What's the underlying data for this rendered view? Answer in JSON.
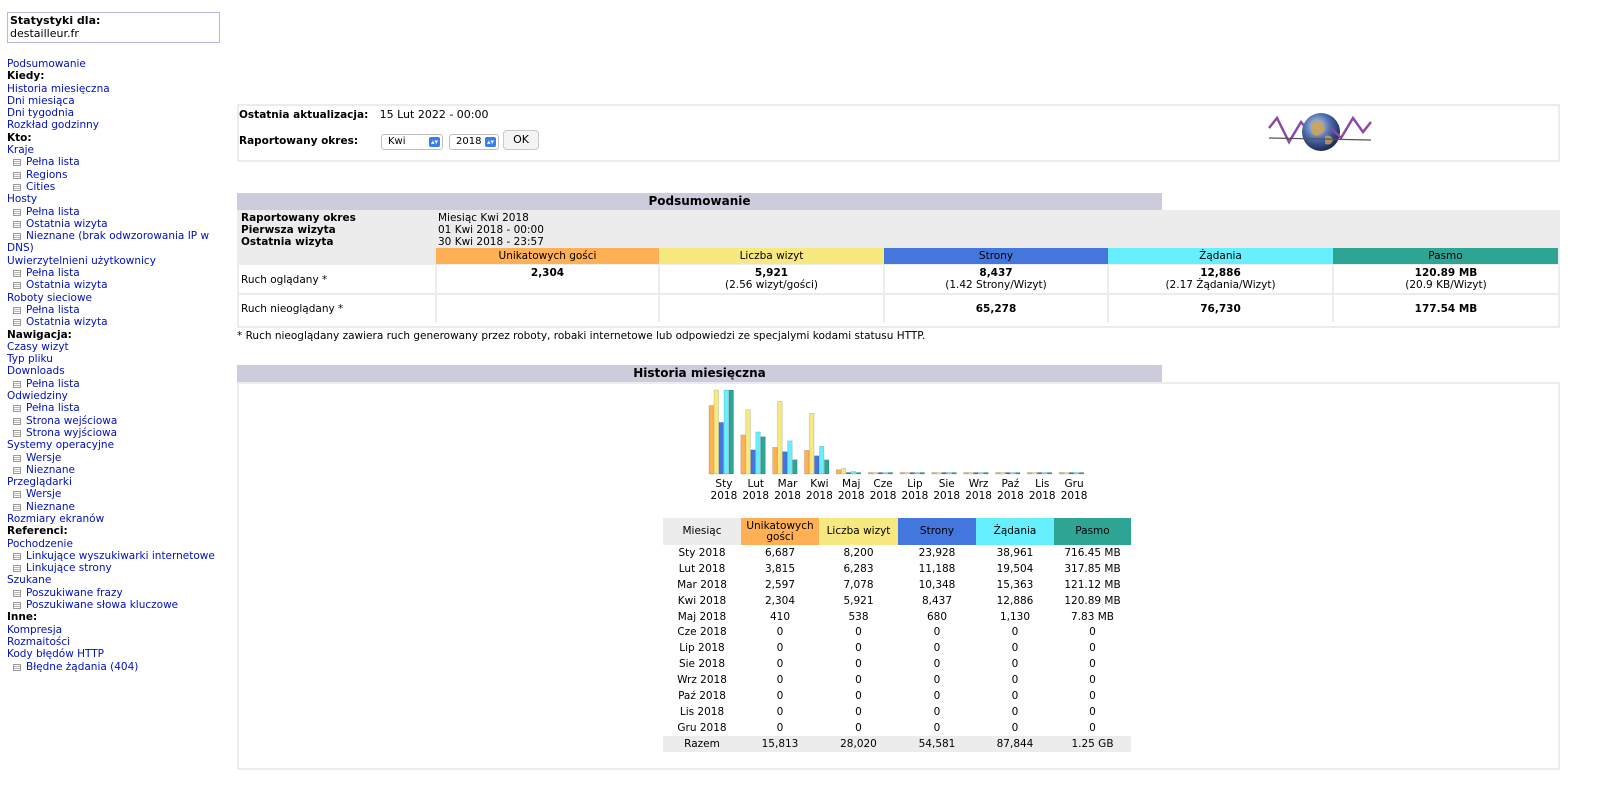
{
  "colors": {
    "unique": "#FFB055",
    "visits": "#F8E880",
    "pages": "#4477DD",
    "hits": "#66F0FF",
    "bandwidth": "#2EA495",
    "link": "#0011BB",
    "header_gray": "#CCCCDD",
    "border": "#ECECEC"
  },
  "menu": {
    "stats_label": "Statystyki dla:",
    "site": "destailleur.fr",
    "items": [
      {
        "type": "link",
        "label": "Podsumowanie"
      },
      {
        "type": "section",
        "label": "Kiedy:"
      },
      {
        "type": "link",
        "label": "Historia miesięczna"
      },
      {
        "type": "link",
        "label": "Dni miesiąca"
      },
      {
        "type": "link",
        "label": "Dni tygodnia"
      },
      {
        "type": "link",
        "label": "Rozkład godzinny"
      },
      {
        "type": "section",
        "label": "Kto:"
      },
      {
        "type": "link",
        "label": "Kraje"
      },
      {
        "type": "sub",
        "label": "Pełna lista"
      },
      {
        "type": "sub",
        "label": "Regions"
      },
      {
        "type": "sub",
        "label": "Cities"
      },
      {
        "type": "link",
        "label": "Hosty"
      },
      {
        "type": "sub",
        "label": "Pełna lista"
      },
      {
        "type": "sub",
        "label": "Ostatnia wizyta"
      },
      {
        "type": "subwrap",
        "label": "Nieznane (brak odwzorowania IP w DNS)"
      },
      {
        "type": "link",
        "label": "Uwierzytelnieni użytkownicy"
      },
      {
        "type": "sub",
        "label": "Pełna lista"
      },
      {
        "type": "sub",
        "label": "Ostatnia wizyta"
      },
      {
        "type": "link",
        "label": "Roboty sieciowe"
      },
      {
        "type": "sub",
        "label": "Pełna lista"
      },
      {
        "type": "sub",
        "label": "Ostatnia wizyta"
      },
      {
        "type": "section",
        "label": "Nawigacja:"
      },
      {
        "type": "link",
        "label": "Czasy wizyt"
      },
      {
        "type": "link",
        "label": "Typ pliku"
      },
      {
        "type": "link",
        "label": "Downloads"
      },
      {
        "type": "sub",
        "label": "Pełna lista"
      },
      {
        "type": "link",
        "label": "Odwiedziny"
      },
      {
        "type": "sub",
        "label": "Pełna lista"
      },
      {
        "type": "sub",
        "label": "Strona wejściowa"
      },
      {
        "type": "sub",
        "label": "Strona wyjściowa"
      },
      {
        "type": "link",
        "label": "Systemy operacyjne"
      },
      {
        "type": "sub",
        "label": "Wersje"
      },
      {
        "type": "sub",
        "label": "Nieznane"
      },
      {
        "type": "link",
        "label": "Przeglądarki"
      },
      {
        "type": "sub",
        "label": "Wersje"
      },
      {
        "type": "sub",
        "label": "Nieznane"
      },
      {
        "type": "link",
        "label": "Rozmiary ekranów"
      },
      {
        "type": "section",
        "label": "Referenci:"
      },
      {
        "type": "link",
        "label": "Pochodzenie"
      },
      {
        "type": "sub",
        "label": "Linkujące wyszukiwarki internetowe"
      },
      {
        "type": "sub",
        "label": "Linkujące strony"
      },
      {
        "type": "link",
        "label": "Szukane"
      },
      {
        "type": "sub",
        "label": "Poszukiwane frazy"
      },
      {
        "type": "sub",
        "label": "Poszukiwane słowa kluczowe"
      },
      {
        "type": "section",
        "label": "Inne:"
      },
      {
        "type": "link",
        "label": "Kompresja"
      },
      {
        "type": "link",
        "label": "Rozmaitości"
      },
      {
        "type": "link",
        "label": "Kody błędów HTTP"
      },
      {
        "type": "sub",
        "label": "Błędne żądania (404)"
      }
    ]
  },
  "info": {
    "last_update_label": "Ostatnia aktualizacja:",
    "last_update_value": "15 Lut 2022 - 00:00",
    "period_label": "Raportowany okres:",
    "month_select": "Kwi",
    "year_select": "2018",
    "ok_button": "OK"
  },
  "summary": {
    "title": "Podsumowanie",
    "period_label": "Raportowany okres",
    "period_value": "Miesiąc Kwi 2018",
    "first_visit_label": "Pierwsza wizyta",
    "first_visit_value": "01 Kwi 2018 - 00:00",
    "last_visit_label": "Ostatnia wizyta",
    "last_visit_value": "30 Kwi 2018 - 23:57",
    "headers": {
      "unique": "Unikatowych gości",
      "visits": "Liczba wizyt",
      "pages": "Strony",
      "hits": "Żądania",
      "bandwidth": "Pasmo"
    },
    "viewed": {
      "label": "Ruch oglądany *",
      "unique": "2,304",
      "visits": "5,921",
      "visits_sub": "(2.56 wizyt/gości)",
      "pages": "8,437",
      "pages_sub": "(1.42 Strony/Wizyt)",
      "hits": "12,886",
      "hits_sub": "(2.17 Żądania/Wizyt)",
      "bandwidth": "120.89 MB",
      "bandwidth_sub": "(20.9 KB/Wizyt)"
    },
    "notviewed": {
      "label": "Ruch nieoglądany *",
      "pages": "65,278",
      "hits": "76,730",
      "bandwidth": "177.54 MB"
    },
    "footnote": "* Ruch nieoglądany zawiera ruch generowany przez roboty, robaki internetowe lub odpowiedzi ze specjalymi kodami statusu HTTP."
  },
  "history": {
    "title": "Historia miesięczna",
    "headers": {
      "month": "Miesiąc",
      "unique": "Unikatowych gości",
      "visits": "Liczba wizyt",
      "pages": "Strony",
      "hits": "Żądania",
      "bandwidth": "Pasmo"
    },
    "rows": [
      [
        "Sty 2018",
        "6,687",
        "8,200",
        "23,928",
        "38,961",
        "716.45 MB"
      ],
      [
        "Lut 2018",
        "3,815",
        "6,283",
        "11,188",
        "19,504",
        "317.85 MB"
      ],
      [
        "Mar 2018",
        "2,597",
        "7,078",
        "10,348",
        "15,363",
        "121.12 MB"
      ],
      [
        "Kwi 2018",
        "2,304",
        "5,921",
        "8,437",
        "12,886",
        "120.89 MB"
      ],
      [
        "Maj 2018",
        "410",
        "538",
        "680",
        "1,130",
        "7.83 MB"
      ],
      [
        "Cze 2018",
        "0",
        "0",
        "0",
        "0",
        "0"
      ],
      [
        "Lip 2018",
        "0",
        "0",
        "0",
        "0",
        "0"
      ],
      [
        "Sie 2018",
        "0",
        "0",
        "0",
        "0",
        "0"
      ],
      [
        "Wrz 2018",
        "0",
        "0",
        "0",
        "0",
        "0"
      ],
      [
        "Paź 2018",
        "0",
        "0",
        "0",
        "0",
        "0"
      ],
      [
        "Lis 2018",
        "0",
        "0",
        "0",
        "0",
        "0"
      ],
      [
        "Gru 2018",
        "0",
        "0",
        "0",
        "0",
        "0"
      ]
    ],
    "total": [
      "Razem",
      "15,813",
      "28,020",
      "54,581",
      "87,844",
      "1.25 GB"
    ]
  },
  "chart_data": {
    "type": "bar",
    "categories": [
      "Sty 2018",
      "Lut 2018",
      "Mar 2018",
      "Kwi 2018",
      "Maj 2018",
      "Cze 2018",
      "Lip 2018",
      "Sie 2018",
      "Wrz 2018",
      "Paź 2018",
      "Lis 2018",
      "Gru 2018"
    ],
    "month_labels": [
      "Sty",
      "Lut",
      "Mar",
      "Kwi",
      "Maj",
      "Cze",
      "Lip",
      "Sie",
      "Wrz",
      "Paź",
      "Lis",
      "Gru"
    ],
    "year_labels": [
      "2018",
      "2018",
      "2018",
      "2018",
      "2018",
      "2018",
      "2018",
      "2018",
      "2018",
      "2018",
      "2018",
      "2018"
    ],
    "series": [
      {
        "key": "unique",
        "color": "#FFB055",
        "values": [
          6687,
          3815,
          2597,
          2304,
          410,
          0,
          0,
          0,
          0,
          0,
          0,
          0
        ]
      },
      {
        "key": "visits",
        "color": "#F8E880",
        "values": [
          8200,
          6283,
          7078,
          5921,
          538,
          0,
          0,
          0,
          0,
          0,
          0,
          0
        ]
      },
      {
        "key": "pages",
        "color": "#4477DD",
        "values": [
          23928,
          11188,
          10348,
          8437,
          680,
          0,
          0,
          0,
          0,
          0,
          0,
          0
        ]
      },
      {
        "key": "hits",
        "color": "#66F0FF",
        "values": [
          38961,
          19504,
          15363,
          12886,
          1130,
          0,
          0,
          0,
          0,
          0,
          0,
          0
        ]
      },
      {
        "key": "bandwidth",
        "color": "#2EA495",
        "values": [
          716.45,
          317.85,
          121.12,
          120.89,
          7.83,
          0,
          0,
          0,
          0,
          0,
          0,
          0
        ]
      }
    ],
    "scale_groups": [
      [
        "unique",
        "visits"
      ],
      [
        "pages",
        "hits"
      ],
      [
        "bandwidth"
      ]
    ]
  }
}
